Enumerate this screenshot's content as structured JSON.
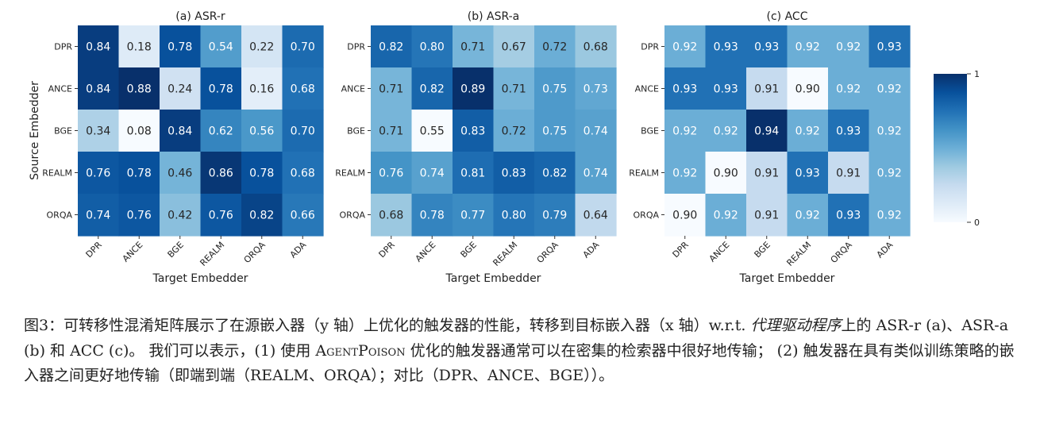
{
  "chart_data": [
    {
      "type": "heatmap",
      "title": "(a) ASR-r",
      "xlabel": "Target Embedder",
      "ylabel": "Source Embedder",
      "x_categories": [
        "DPR",
        "ANCE",
        "BGE",
        "REALM",
        "ORQA",
        "ADA"
      ],
      "y_categories": [
        "DPR",
        "ANCE",
        "BGE",
        "REALM",
        "ORQA"
      ],
      "values": [
        [
          0.84,
          0.18,
          0.78,
          0.54,
          0.22,
          0.7
        ],
        [
          0.84,
          0.88,
          0.24,
          0.78,
          0.16,
          0.68
        ],
        [
          0.34,
          0.08,
          0.84,
          0.62,
          0.56,
          0.7
        ],
        [
          0.76,
          0.78,
          0.46,
          0.86,
          0.78,
          0.68
        ],
        [
          0.74,
          0.76,
          0.42,
          0.76,
          0.82,
          0.66
        ]
      ]
    },
    {
      "type": "heatmap",
      "title": "(b) ASR-a",
      "xlabel": "Target Embedder",
      "ylabel": "",
      "x_categories": [
        "DPR",
        "ANCE",
        "BGE",
        "REALM",
        "ORQA",
        "ADA"
      ],
      "y_categories": [
        "DPR",
        "ANCE",
        "BGE",
        "REALM",
        "ORQA"
      ],
      "values": [
        [
          0.82,
          0.8,
          0.71,
          0.67,
          0.72,
          0.68
        ],
        [
          0.71,
          0.82,
          0.89,
          0.71,
          0.75,
          0.73
        ],
        [
          0.71,
          0.55,
          0.83,
          0.72,
          0.75,
          0.74
        ],
        [
          0.76,
          0.74,
          0.81,
          0.83,
          0.82,
          0.74
        ],
        [
          0.68,
          0.78,
          0.77,
          0.8,
          0.79,
          0.64
        ]
      ]
    },
    {
      "type": "heatmap",
      "title": "(c) ACC",
      "xlabel": "Target Embedder",
      "ylabel": "",
      "x_categories": [
        "DPR",
        "ANCE",
        "BGE",
        "REALM",
        "ORQA",
        "ADA"
      ],
      "y_categories": [
        "DPR",
        "ANCE",
        "BGE",
        "REALM",
        "ORQA"
      ],
      "values": [
        [
          0.92,
          0.93,
          0.93,
          0.92,
          0.92,
          0.93
        ],
        [
          0.93,
          0.93,
          0.91,
          0.9,
          0.92,
          0.92
        ],
        [
          0.92,
          0.92,
          0.94,
          0.92,
          0.93,
          0.92
        ],
        [
          0.92,
          0.9,
          0.91,
          0.93,
          0.91,
          0.92
        ],
        [
          0.9,
          0.92,
          0.91,
          0.92,
          0.93,
          0.92
        ]
      ]
    }
  ],
  "colorbar": {
    "max_label": "1",
    "min_label": "0"
  },
  "caption": {
    "label": "图3：",
    "text1": "可转移性混淆矩阵展示了在源嵌入器（y 轴）上优化的触发器的性能，转移到目标嵌入器（x 轴）w.r.t. ",
    "emph": "代理驱动程序",
    "text2": "上的 ASR-r (a)、ASR-a (b) 和 ACC (c)。 我们可以表示，(1) 使用 ",
    "smallcaps": "AgentPoison",
    "text3": " 优化的触发器通常可以在密集的检索器中很好地传输； (2) 触发器在具有类似训练策略的嵌入器之间更好地传输（即端到端（REALM、ORQA）；对比（DPR、ANCE、BGE））。"
  }
}
